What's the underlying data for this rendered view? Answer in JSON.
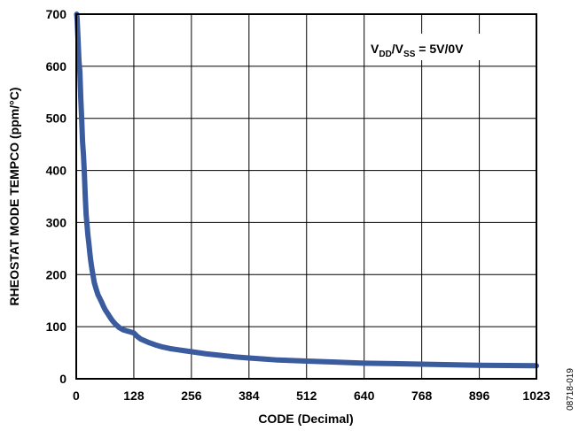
{
  "chart_data": {
    "type": "line",
    "xlabel": "CODE (Decimal)",
    "ylabel": "RHEOSTAT MODE TEMPCO (ppm/°C)",
    "xlim": [
      0,
      1023
    ],
    "ylim": [
      0,
      700
    ],
    "x_ticks": [
      "0",
      "128",
      "256",
      "384",
      "512",
      "640",
      "768",
      "896",
      "1023"
    ],
    "y_ticks": [
      "0",
      "100",
      "200",
      "300",
      "400",
      "500",
      "600",
      "700"
    ],
    "grid": true,
    "line_color": "#3a5b9e",
    "annotation": {
      "base1": "V",
      "sub1": "DD",
      "mid": "/V",
      "sub2": "SS",
      "rest": " = 5V/0V"
    },
    "figure_id": "08718-019",
    "series": [
      {
        "x": [
          1,
          2,
          3,
          4,
          5,
          6,
          8,
          10,
          12,
          14,
          16,
          18,
          20,
          22,
          24,
          26,
          28,
          30,
          32,
          35,
          38,
          40,
          44,
          48,
          52,
          56,
          60,
          64,
          70,
          76,
          80,
          88,
          96,
          104,
          112,
          120,
          128,
          136,
          144,
          160,
          176,
          192,
          208,
          224,
          240,
          256,
          288,
          320,
          352,
          384,
          416,
          448,
          480,
          512,
          576,
          640,
          704,
          768,
          832,
          896,
          960,
          1023
        ],
        "y": [
          700,
          690,
          670,
          650,
          630,
          610,
          590,
          540,
          500,
          455,
          430,
          395,
          350,
          315,
          295,
          275,
          260,
          243,
          228,
          210,
          195,
          185,
          173,
          162,
          155,
          148,
          140,
          133,
          125,
          117,
          112,
          104,
          98,
          94,
          92,
          90,
          88,
          81,
          76,
          70,
          65,
          61,
          58,
          56,
          54,
          52,
          48,
          45,
          42,
          40,
          38,
          36,
          35,
          34,
          32,
          30,
          29,
          28,
          27,
          26,
          25.5,
          25
        ]
      }
    ]
  }
}
